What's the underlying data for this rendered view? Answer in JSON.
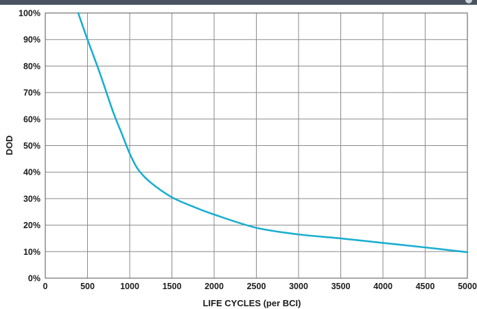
{
  "chart_data": {
    "type": "line",
    "title": "",
    "xlabel": "LIFE CYCLES (per BCI)",
    "ylabel": "DOD",
    "xlim": [
      0,
      5000
    ],
    "ylim": [
      0,
      100
    ],
    "x_ticks": [
      0,
      500,
      1000,
      1500,
      2000,
      2500,
      3000,
      3500,
      4000,
      4500,
      5000
    ],
    "x_tick_labels": [
      "0",
      "500",
      "1000",
      "1500",
      "2000",
      "2500",
      "3000",
      "3500",
      "4000",
      "4500",
      "5000"
    ],
    "y_ticks": [
      0,
      10,
      20,
      30,
      40,
      50,
      60,
      70,
      80,
      90,
      100
    ],
    "y_tick_labels": [
      "0%",
      "10%",
      "20%",
      "30%",
      "40%",
      "50%",
      "60%",
      "70%",
      "80%",
      "90%",
      "100%"
    ],
    "grid": true,
    "line_color": "#1aaed1",
    "series": [
      {
        "x": [
          390,
          500,
          650,
          800,
          900,
          1000,
          1100,
          1250,
          1500,
          1750,
          2000,
          2500,
          3000,
          3500,
          4000,
          4500,
          5000
        ],
        "y": [
          100,
          90,
          77,
          63,
          55,
          47,
          41,
          36,
          30.5,
          27,
          24,
          19,
          16.5,
          15,
          13.3,
          11.6,
          9.8
        ]
      }
    ]
  }
}
